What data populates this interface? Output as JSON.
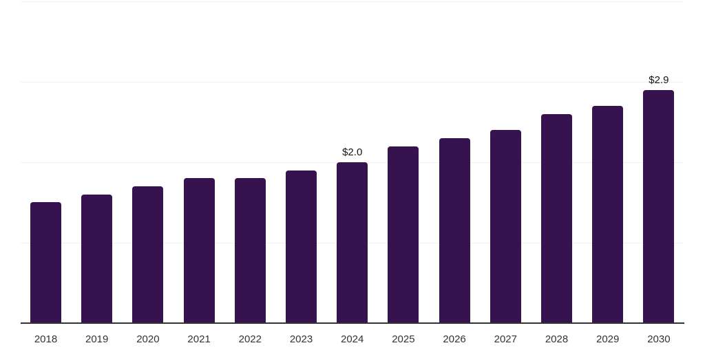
{
  "chart": {
    "colors": {
      "bar": "#36124E",
      "grid": "#f0f0f0",
      "axis": "#333333",
      "tick_label": "#333333",
      "value_label": "#141414",
      "background": "#ffffff"
    }
  },
  "chart_data": {
    "type": "bar",
    "categories": [
      "2018",
      "2019",
      "2020",
      "2021",
      "2022",
      "2023",
      "2024",
      "2025",
      "2026",
      "2027",
      "2028",
      "2029",
      "2030"
    ],
    "values": [
      1.5,
      1.6,
      1.7,
      1.8,
      1.8,
      1.9,
      2.0,
      2.2,
      2.3,
      2.4,
      2.6,
      2.7,
      2.9
    ],
    "data_labels": [
      "",
      "",
      "",
      "",
      "",
      "",
      "$2.0",
      "",
      "",
      "",
      "",
      "",
      "$2.9"
    ],
    "title": "",
    "xlabel": "",
    "ylabel": "",
    "ylim": [
      0,
      4
    ],
    "gridline_values": [
      1,
      2,
      3,
      4
    ],
    "grid": true,
    "legend": false,
    "y_tick_labels_shown": false
  }
}
